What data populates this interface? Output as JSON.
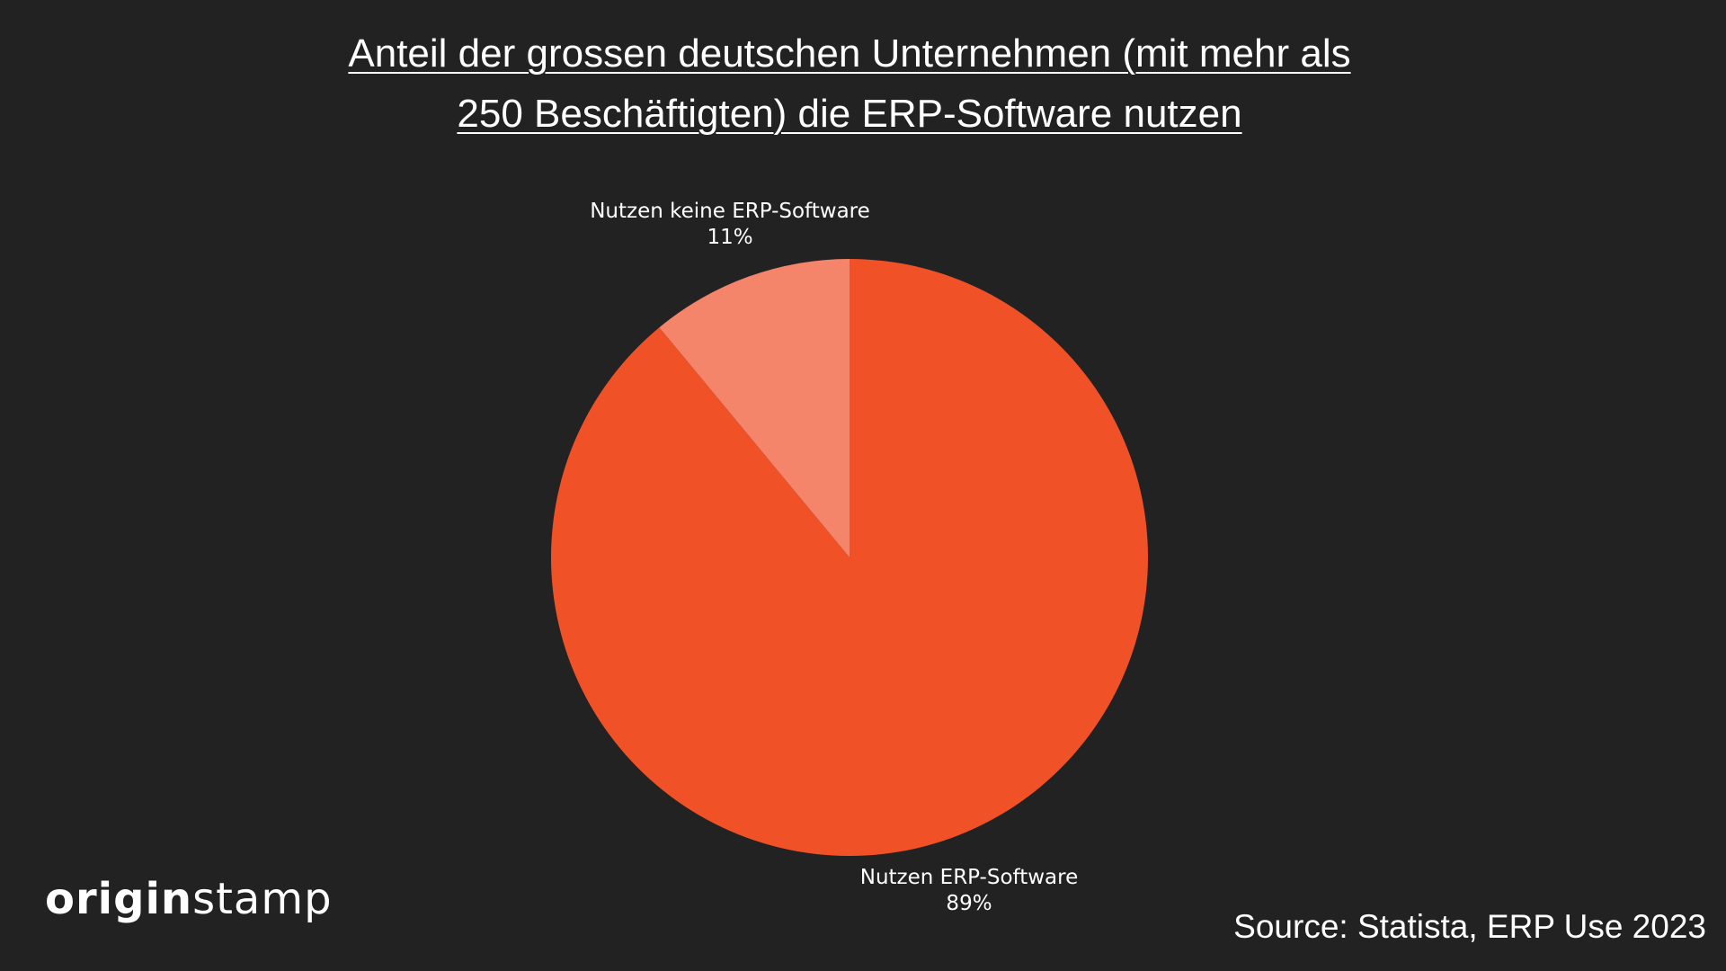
{
  "chart_data": {
    "type": "pie",
    "title_lines": [
      "Anteil der grossen deutschen Unternehmen (mit mehr als",
      "250 Beschäftigten) die ERP-Software nutzen"
    ],
    "slices": [
      {
        "label": "Nutzen ERP-Software",
        "value": 89,
        "value_label": "89%",
        "color": "#F05127"
      },
      {
        "label": "Nutzen keine ERP-Software",
        "value": 11,
        "value_label": "11%",
        "color": "#F4846A"
      }
    ],
    "start_angle": "12 o'clock, clockwise"
  },
  "logo": {
    "part1": "origin",
    "part2": "stamp"
  },
  "source": "Source: Statista, ERP Use 2023",
  "background": "#222222"
}
